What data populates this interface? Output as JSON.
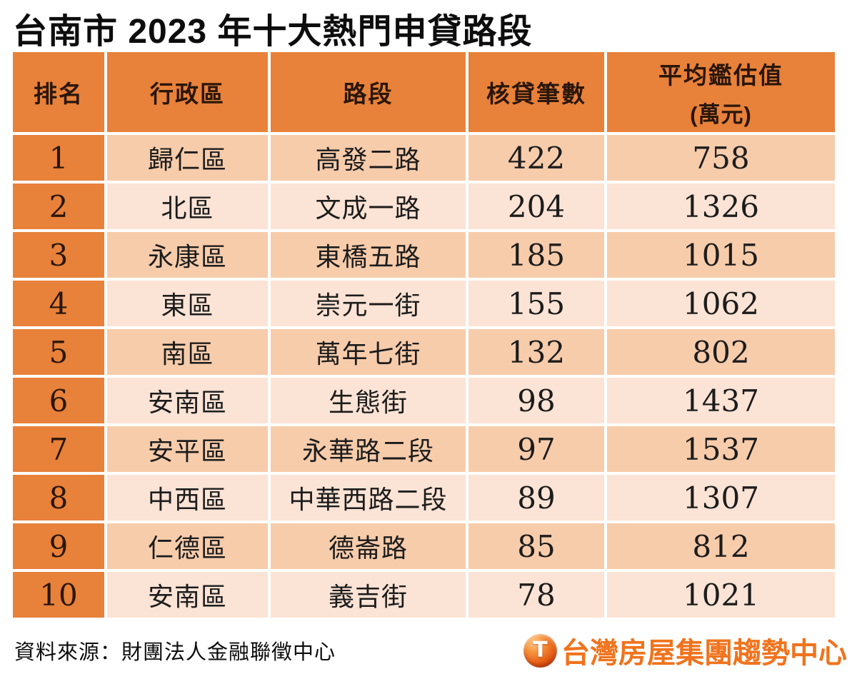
{
  "title": "台南市 2023 年十大熱門申貸路段",
  "table": {
    "headers": {
      "rank": "排名",
      "district": "行政區",
      "road": "路段",
      "count": "核貸筆數",
      "value_line1": "平均鑑估值",
      "value_line2": "(萬元)"
    },
    "rows": [
      {
        "rank": "1",
        "district": "歸仁區",
        "road": "高發二路",
        "count": "422",
        "value": "758"
      },
      {
        "rank": "2",
        "district": "北區",
        "road": "文成一路",
        "count": "204",
        "value": "1326"
      },
      {
        "rank": "3",
        "district": "永康區",
        "road": "東橋五路",
        "count": "185",
        "value": "1015"
      },
      {
        "rank": "4",
        "district": "東區",
        "road": "崇元一街",
        "count": "155",
        "value": "1062"
      },
      {
        "rank": "5",
        "district": "南區",
        "road": "萬年七街",
        "count": "132",
        "value": "802"
      },
      {
        "rank": "6",
        "district": "安南區",
        "road": "生態街",
        "count": "98",
        "value": "1437"
      },
      {
        "rank": "7",
        "district": "安平區",
        "road": "永華路二段",
        "count": "97",
        "value": "1537"
      },
      {
        "rank": "8",
        "district": "中西區",
        "road": "中華西路二段",
        "count": "89",
        "value": "1307"
      },
      {
        "rank": "9",
        "district": "仁德區",
        "road": "德崙路",
        "count": "85",
        "value": "812"
      },
      {
        "rank": "10",
        "district": "安南區",
        "road": "義吉街",
        "count": "78",
        "value": "1021"
      }
    ]
  },
  "footer": {
    "source": "資料來源：財團法人金融聯徵中心",
    "brand": "台灣房屋集團趨勢中心",
    "logo_letter": "T"
  },
  "colors": {
    "header_orange": "#E8813A",
    "row_dark_peach": "#F7CCAB",
    "row_light_peach": "#FBE3D5",
    "brand_orange": "#F0731D",
    "grid_white": "#FFFFFF"
  },
  "chart_data": {
    "type": "table",
    "title": "台南市 2023 年十大熱門申貸路段",
    "columns": [
      "排名",
      "行政區",
      "路段",
      "核貸筆數",
      "平均鑑估值(萬元)"
    ],
    "rows": [
      [
        1,
        "歸仁區",
        "高發二路",
        422,
        758
      ],
      [
        2,
        "北區",
        "文成一路",
        204,
        1326
      ],
      [
        3,
        "永康區",
        "東橋五路",
        185,
        1015
      ],
      [
        4,
        "東區",
        "崇元一街",
        155,
        1062
      ],
      [
        5,
        "南區",
        "萬年七街",
        132,
        802
      ],
      [
        6,
        "安南區",
        "生態街",
        98,
        1437
      ],
      [
        7,
        "安平區",
        "永華路二段",
        97,
        1537
      ],
      [
        8,
        "中西區",
        "中華西路二段",
        89,
        1307
      ],
      [
        9,
        "仁德區",
        "德崙路",
        85,
        812
      ],
      [
        10,
        "安南區",
        "義吉街",
        78,
        1021
      ]
    ],
    "source": "資料來源：財團法人金融聯徵中心"
  }
}
